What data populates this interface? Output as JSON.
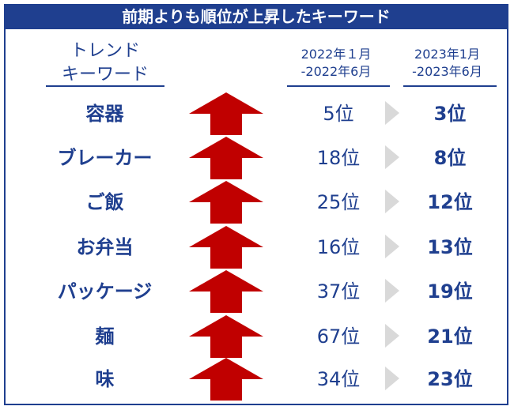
{
  "title": "前期よりも順位が上昇したキーワード",
  "header": {
    "keyword_line1": "トレンド",
    "keyword_line2": "キーワード",
    "period1_line1": "2022年１月",
    "period1_line2": "-2022年6月",
    "period2_line1": "2023年1月",
    "period2_line1_raw": "2023年1月",
    "period2_line2": "-2023年6月"
  },
  "colors": {
    "navy": "#1f3f8f",
    "arrow_red": "#c00000",
    "chevron_gray": "#d9d9d9"
  },
  "rows": [
    {
      "keyword": "容器",
      "prev_rank": "5位",
      "curr_rank": "3位"
    },
    {
      "keyword": "ブレーカー",
      "prev_rank": "18位",
      "curr_rank": "8位"
    },
    {
      "keyword": "ご飯",
      "prev_rank": "25位",
      "curr_rank": "12位"
    },
    {
      "keyword": "お弁当",
      "prev_rank": "16位",
      "curr_rank": "13位"
    },
    {
      "keyword": "パッケージ",
      "prev_rank": "37位",
      "curr_rank": "19位"
    },
    {
      "keyword": "麺",
      "prev_rank": "67位",
      "curr_rank": "21位"
    },
    {
      "keyword": "味",
      "prev_rank": "34位",
      "curr_rank": "23位"
    }
  ]
}
